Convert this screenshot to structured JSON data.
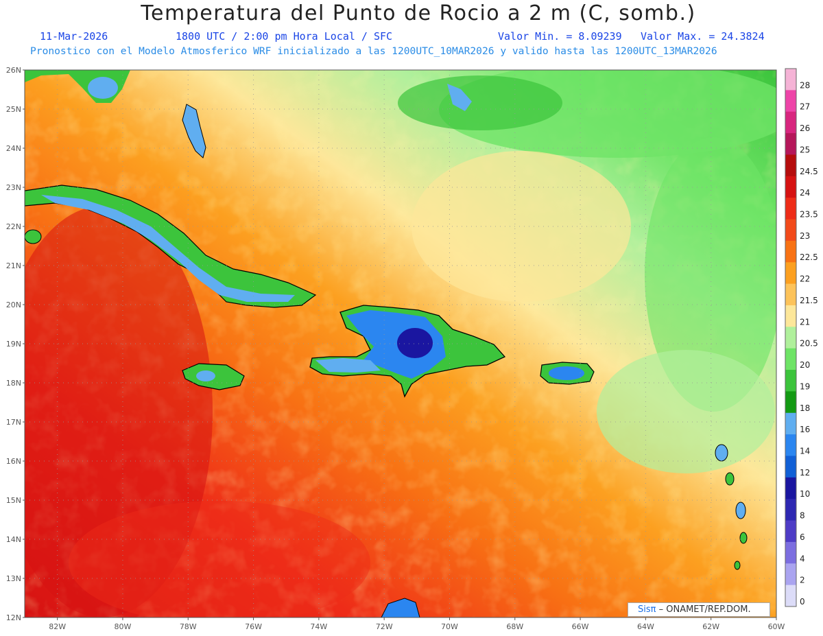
{
  "title": "Temperatura del Punto de Rocio a 2 m (C, somb.)",
  "date": "11-Mar-2026",
  "time_info": "1800 UTC / 2:00 pm Hora Local / SFC",
  "min_label": "Valor Min. = 8.09239",
  "max_label": "Valor Max. = 24.3824",
  "model_info": "Pronostico con el Modelo Atmosferico WRF inicializado a las 1200UTC_10MAR2026 y valido hasta las  1200UTC_13MAR2026",
  "credit": {
    "logo": "Sisπ",
    "text": "– ONAMET/REP.DOM."
  },
  "map": {
    "lon_range": [
      -83,
      -60
    ],
    "lat_range": [
      12,
      26
    ],
    "lat_ticks": [
      "26N",
      "25N",
      "24N",
      "23N",
      "22N",
      "21N",
      "20N",
      "19N",
      "18N",
      "17N",
      "16N",
      "15N",
      "14N",
      "13N",
      "12N"
    ],
    "lon_ticks": [
      "82W",
      "80W",
      "78W",
      "76W",
      "74W",
      "72W",
      "70W",
      "68W",
      "66W",
      "64W",
      "62W",
      "60W"
    ],
    "gridlines": true
  },
  "colorbar": {
    "labels": [
      "28",
      "27",
      "26",
      "25",
      "24.5",
      "24",
      "23.5",
      "23",
      "22.5",
      "22",
      "21.5",
      "21",
      "20.5",
      "20",
      "19",
      "18",
      "16",
      "14",
      "12",
      "10",
      "8",
      "6",
      "4",
      "2",
      "0"
    ],
    "colors": [
      "#f5b3d6",
      "#ee44a8",
      "#d8267f",
      "#b5175a",
      "#b50d0d",
      "#d61212",
      "#ee2c18",
      "#f24a1a",
      "#f87214",
      "#fca020",
      "#fdc35a",
      "#fde79a",
      "#b0f09c",
      "#6ee466",
      "#3cc43c",
      "#139a13",
      "#60aef0",
      "#2b86f0",
      "#1160d6",
      "#1a16a0",
      "#2e28b2",
      "#4e3cc6",
      "#7c6ee0",
      "#aaa4f0",
      "#dcdcf8"
    ]
  }
}
